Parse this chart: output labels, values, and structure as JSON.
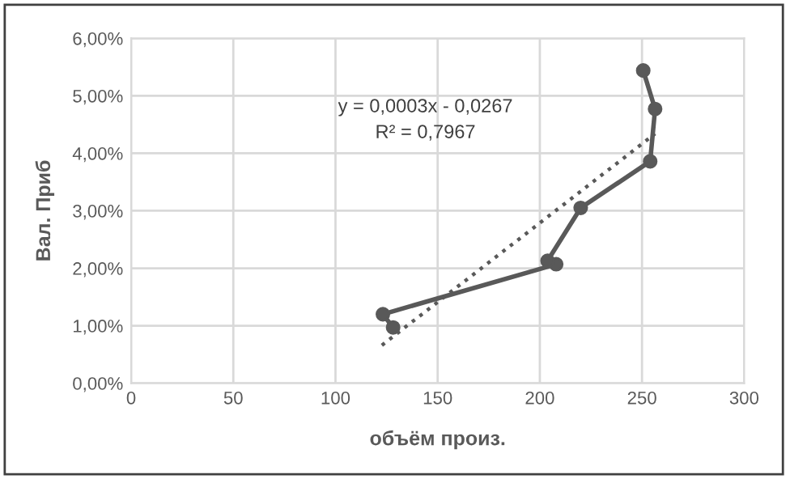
{
  "chart_data": {
    "type": "line",
    "xlabel": "объём произ.",
    "ylabel": "Вал. Приб",
    "series": [
      {
        "color": "#595959",
        "marker": "circle",
        "line_style": "solid",
        "x": [
          128.2,
          123.2,
          208,
          203.8,
          220,
          254,
          256.4,
          250.6
        ],
        "values": [
          0.97,
          1.2,
          2.07,
          2.13,
          3.05,
          3.86,
          4.77,
          5.44
        ]
      },
      {
        "color": "#595959",
        "marker": "none",
        "line_style": "dotted",
        "x": [
          122.7,
          256.4
        ],
        "values": [
          0.66,
          4.34
        ]
      }
    ],
    "annotations": [
      "y = 0,0003x - 0,0267",
      "R² = 0,7967"
    ],
    "xlim": [
      0,
      300
    ],
    "xticks": [
      0,
      50,
      100,
      150,
      200,
      250,
      300
    ],
    "ylim": [
      0,
      6
    ],
    "yticks": [
      {
        "value": 0,
        "label": "0,00%"
      },
      {
        "value": 1,
        "label": "1,00%"
      },
      {
        "value": 2,
        "label": "2,00%"
      },
      {
        "value": 3,
        "label": "3,00%"
      },
      {
        "value": 4,
        "label": "4,00%"
      },
      {
        "value": 5,
        "label": "5,00%"
      },
      {
        "value": 6,
        "label": "6,00%"
      }
    ],
    "grid": true,
    "legend": false
  }
}
